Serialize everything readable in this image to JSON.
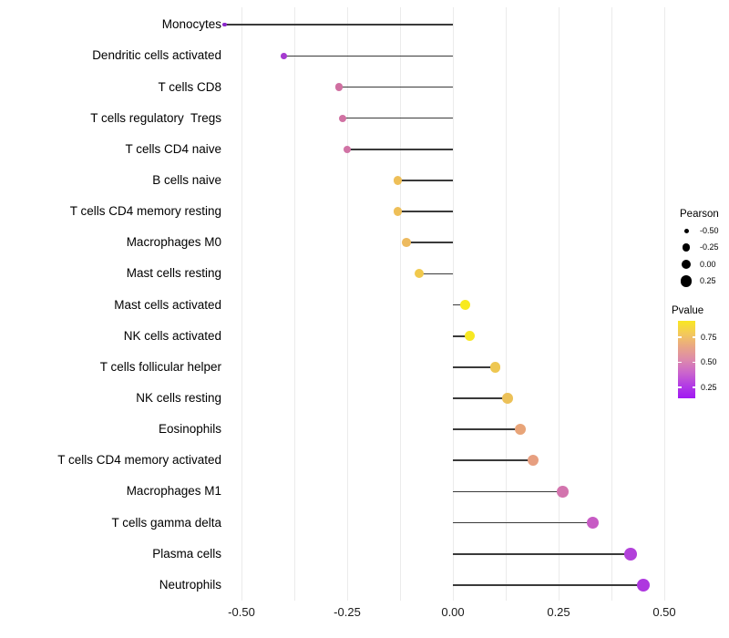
{
  "chart_data": {
    "type": "lollipop",
    "title": "",
    "xlabel": "",
    "ylabel": "",
    "x_axis": {
      "tick_labels": [
        "-0.50",
        "-0.25",
        "0.00",
        "0.25",
        "0.50"
      ],
      "tick_values": [
        -0.5,
        -0.25,
        0,
        0.25,
        0.5
      ],
      "gridline_values": [
        -0.5,
        -0.375,
        -0.25,
        -0.125,
        0,
        0.125,
        0.25,
        0.375,
        0.5
      ],
      "xlim": [
        -0.59,
        0.51
      ],
      "grid": "vertical-only"
    },
    "rows": [
      {
        "label": "Monocytes",
        "pearson": -0.54,
        "pvalue": 0.01,
        "color": "#8a27c9"
      },
      {
        "label": "Dendritic cells activated",
        "pearson": -0.4,
        "pvalue": 0.05,
        "color": "#a53bd0"
      },
      {
        "label": "T cells CD8",
        "pearson": -0.27,
        "pvalue": 0.22,
        "color": "#d06fa1"
      },
      {
        "label": "T cells regulatory  Tregs",
        "pearson": -0.26,
        "pvalue": 0.23,
        "color": "#d172a3"
      },
      {
        "label": "T cells CD4 naive",
        "pearson": -0.25,
        "pvalue": 0.24,
        "color": "#d173a5"
      },
      {
        "label": "B cells naive",
        "pearson": -0.13,
        "pvalue": 0.57,
        "color": "#eebf58"
      },
      {
        "label": "T cells CD4 memory resting",
        "pearson": -0.13,
        "pvalue": 0.57,
        "color": "#eebf58"
      },
      {
        "label": "Macrophages M0",
        "pearson": -0.11,
        "pvalue": 0.55,
        "color": "#edba5e"
      },
      {
        "label": "Mast cells resting",
        "pearson": -0.08,
        "pvalue": 0.68,
        "color": "#f1c94c"
      },
      {
        "label": "Mast cells activated",
        "pearson": 0.03,
        "pvalue": 0.92,
        "color": "#f8ea1e"
      },
      {
        "label": "NK cells activated",
        "pearson": 0.04,
        "pvalue": 0.9,
        "color": "#f7e823"
      },
      {
        "label": "T cells follicular helper",
        "pearson": 0.1,
        "pvalue": 0.72,
        "color": "#eec751"
      },
      {
        "label": "NK cells resting",
        "pearson": 0.13,
        "pvalue": 0.66,
        "color": "#ecc158"
      },
      {
        "label": "Eosinophils",
        "pearson": 0.16,
        "pvalue": 0.47,
        "color": "#e8a478"
      },
      {
        "label": "T cells CD4 memory activated",
        "pearson": 0.19,
        "pvalue": 0.44,
        "color": "#e79f80"
      },
      {
        "label": "Macrophages M1",
        "pearson": 0.26,
        "pvalue": 0.24,
        "color": "#d374ae"
      },
      {
        "label": "T cells gamma delta",
        "pearson": 0.33,
        "pvalue": 0.14,
        "color": "#c75bc4"
      },
      {
        "label": "Plasma cells",
        "pearson": 0.42,
        "pvalue": 0.06,
        "color": "#b241da"
      },
      {
        "label": "Neutrophils",
        "pearson": 0.45,
        "pvalue": 0.04,
        "color": "#ae37df"
      }
    ],
    "legend_size": {
      "title": "Pearson",
      "items": [
        {
          "label": "-0.50",
          "value": -0.5
        },
        {
          "label": "-0.25",
          "value": -0.25
        },
        {
          "label": "0.00",
          "value": 0.0
        },
        {
          "label": "0.25",
          "value": 0.25
        }
      ],
      "position": "right"
    },
    "legend_color": {
      "title": "Pvalue",
      "tick_labels": [
        "0.75",
        "0.50",
        "0.25"
      ],
      "tick_values": [
        0.75,
        0.5,
        0.25
      ],
      "gradient_top_to_bottom": [
        "#f9e721",
        "#f3c95b",
        "#e9a685",
        "#dd8aab",
        "#cb66cc",
        "#b33ce4",
        "#a119f2"
      ],
      "position": "right"
    },
    "stem_color": "#3a3a3a",
    "gridline_color": "#ebebeb"
  }
}
